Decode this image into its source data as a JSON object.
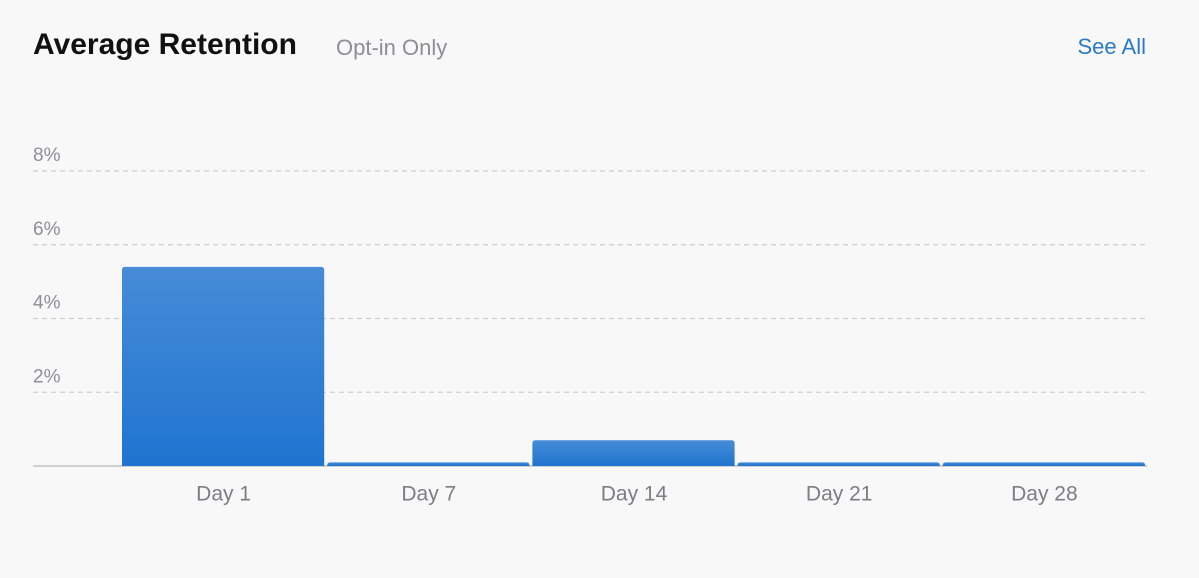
{
  "chart_data": {
    "type": "bar",
    "title": "Average Retention",
    "subtitle": "Opt-in Only",
    "link": "See All",
    "categories": [
      "Day 1",
      "Day 7",
      "Day 14",
      "Day 21",
      "Day 28"
    ],
    "values": [
      5.4,
      0.1,
      0.7,
      0.1,
      0.1
    ],
    "color": "#1f74d0",
    "ylim": [
      0,
      8
    ],
    "yticks": [
      {
        "value": 2,
        "label": "2%"
      },
      {
        "value": 4,
        "label": "4%"
      },
      {
        "value": 6,
        "label": "6%"
      },
      {
        "value": 8,
        "label": "8%"
      }
    ],
    "grid": true
  }
}
